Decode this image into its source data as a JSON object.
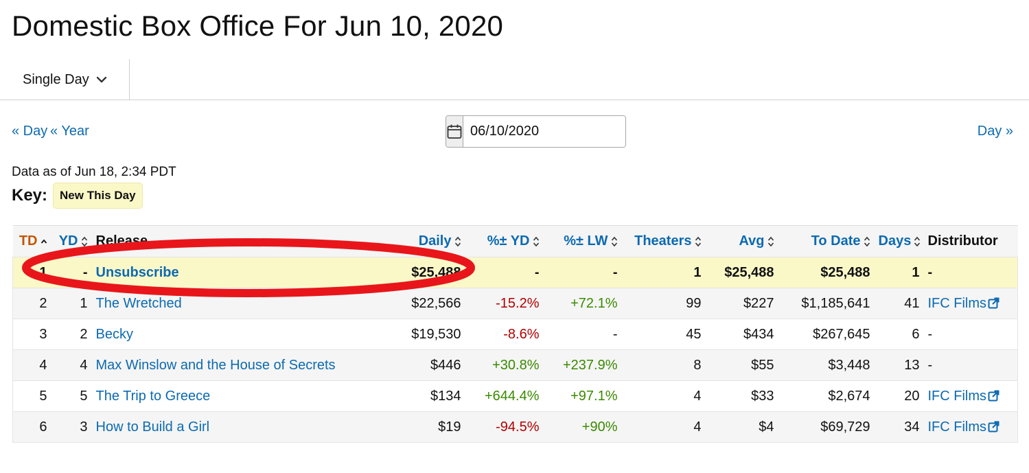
{
  "page_title": "Domestic Box Office For Jun 10, 2020",
  "toolbar": {
    "view_label": "Single Day"
  },
  "nav": {
    "prev_day": "« Day",
    "prev_year": "« Year",
    "next_day": "Day »"
  },
  "date_input": {
    "value": "06/10/2020"
  },
  "data_as_of": "Data as of Jun 18, 2:34 PDT",
  "key": {
    "label": "Key:",
    "badge": "New This Day"
  },
  "table": {
    "headers": {
      "td": "TD",
      "yd": "YD",
      "release": "Release",
      "daily": "Daily",
      "pct_yd": "%± YD",
      "pct_lw": "%± LW",
      "theaters": "Theaters",
      "avg": "Avg",
      "to_date": "To Date",
      "days": "Days",
      "distributor": "Distributor"
    },
    "rows": [
      {
        "td": "1",
        "yd": "-",
        "release": "Unsubscribe",
        "daily": "$25,488",
        "pct_yd": "-",
        "pct_lw": "-",
        "theaters": "1",
        "avg": "$25,488",
        "to_date": "$25,488",
        "days": "1",
        "distributor": "-"
      },
      {
        "td": "2",
        "yd": "1",
        "release": "The Wretched",
        "daily": "$22,566",
        "pct_yd": "-15.2%",
        "pct_lw": "+72.1%",
        "theaters": "99",
        "avg": "$227",
        "to_date": "$1,185,641",
        "days": "41",
        "distributor": "IFC Films"
      },
      {
        "td": "3",
        "yd": "2",
        "release": "Becky",
        "daily": "$19,530",
        "pct_yd": "-8.6%",
        "pct_lw": "-",
        "theaters": "45",
        "avg": "$434",
        "to_date": "$267,645",
        "days": "6",
        "distributor": "-"
      },
      {
        "td": "4",
        "yd": "4",
        "release": "Max Winslow and the House of Secrets",
        "daily": "$446",
        "pct_yd": "+30.8%",
        "pct_lw": "+237.9%",
        "theaters": "8",
        "avg": "$55",
        "to_date": "$3,448",
        "days": "13",
        "distributor": "-"
      },
      {
        "td": "5",
        "yd": "5",
        "release": "The Trip to Greece",
        "daily": "$134",
        "pct_yd": "+644.4%",
        "pct_lw": "+97.1%",
        "theaters": "4",
        "avg": "$33",
        "to_date": "$2,674",
        "days": "20",
        "distributor": "IFC Films"
      },
      {
        "td": "6",
        "yd": "3",
        "release": "How to Build a Girl",
        "daily": "$19",
        "pct_yd": "-94.5%",
        "pct_lw": "+90%",
        "theaters": "4",
        "avg": "$4",
        "to_date": "$69,729",
        "days": "34",
        "distributor": "IFC Films"
      }
    ]
  },
  "colors": {
    "link": "#0c6ab1",
    "sorted_header": "#c45500",
    "new_row_bg": "#fbf8c8",
    "negative": "#b30000",
    "positive": "#3a8a00",
    "annotation": "#e8161a"
  },
  "icons": {
    "calendar": "calendar-icon",
    "dropdown": "chevron-down-icon",
    "sort": "sort-icon",
    "external": "external-link-icon"
  }
}
